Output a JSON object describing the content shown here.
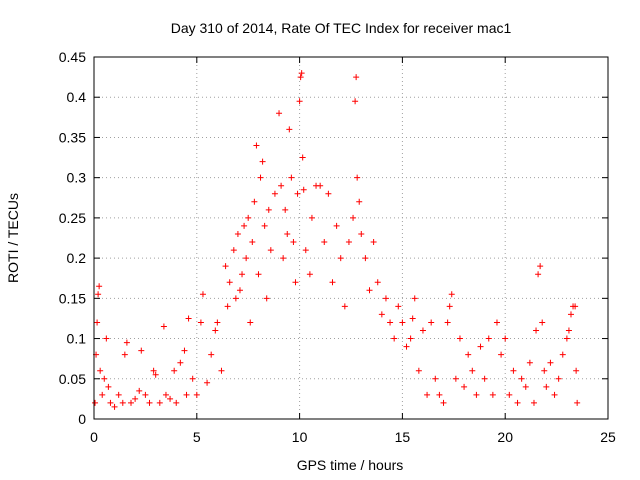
{
  "chart_data": {
    "type": "scatter",
    "title": "Day 310 of 2014, Rate Of TEC Index for receiver mac1",
    "xlabel": "GPS time / hours",
    "ylabel": "ROTI / TECUs",
    "xlim": [
      0,
      25
    ],
    "ylim": [
      0,
      0.45
    ],
    "xticks": [
      0,
      5,
      10,
      15,
      20,
      25
    ],
    "xtick_labels": [
      "0",
      "5",
      "10",
      "15",
      "20",
      "25"
    ],
    "yticks": [
      0,
      0.05,
      0.1,
      0.15,
      0.2,
      0.25,
      0.3,
      0.35,
      0.4,
      0.45
    ],
    "ytick_labels": [
      "0",
      "0.05",
      "0.1",
      "0.15",
      "0.2",
      "0.25",
      "0.3",
      "0.35",
      "0.4",
      "0.45"
    ],
    "grid": true,
    "marker": "plus",
    "color": "#ff0000",
    "series": [
      {
        "name": "ROTI",
        "points": [
          [
            0.05,
            0.02
          ],
          [
            0.1,
            0.08
          ],
          [
            0.15,
            0.12
          ],
          [
            0.2,
            0.155
          ],
          [
            0.25,
            0.165
          ],
          [
            0.3,
            0.06
          ],
          [
            0.4,
            0.03
          ],
          [
            0.5,
            0.05
          ],
          [
            0.6,
            0.1
          ],
          [
            0.7,
            0.04
          ],
          [
            0.8,
            0.02
          ],
          [
            1.0,
            0.015
          ],
          [
            1.2,
            0.03
          ],
          [
            1.4,
            0.02
          ],
          [
            1.5,
            0.08
          ],
          [
            1.6,
            0.095
          ],
          [
            1.8,
            0.02
          ],
          [
            2.0,
            0.025
          ],
          [
            2.2,
            0.035
          ],
          [
            2.3,
            0.085
          ],
          [
            2.5,
            0.03
          ],
          [
            2.7,
            0.02
          ],
          [
            2.9,
            0.06
          ],
          [
            3.0,
            0.055
          ],
          [
            3.2,
            0.02
          ],
          [
            3.4,
            0.115
          ],
          [
            3.5,
            0.03
          ],
          [
            3.7,
            0.025
          ],
          [
            3.9,
            0.06
          ],
          [
            4.0,
            0.02
          ],
          [
            4.2,
            0.07
          ],
          [
            4.4,
            0.085
          ],
          [
            4.5,
            0.03
          ],
          [
            4.6,
            0.125
          ],
          [
            4.8,
            0.05
          ],
          [
            5.0,
            0.03
          ],
          [
            5.2,
            0.12
          ],
          [
            5.3,
            0.155
          ],
          [
            5.5,
            0.045
          ],
          [
            5.7,
            0.08
          ],
          [
            5.9,
            0.11
          ],
          [
            6.0,
            0.12
          ],
          [
            6.2,
            0.06
          ],
          [
            6.4,
            0.19
          ],
          [
            6.5,
            0.14
          ],
          [
            6.6,
            0.17
          ],
          [
            6.8,
            0.21
          ],
          [
            6.9,
            0.15
          ],
          [
            7.0,
            0.23
          ],
          [
            7.1,
            0.16
          ],
          [
            7.2,
            0.18
          ],
          [
            7.3,
            0.24
          ],
          [
            7.4,
            0.2
          ],
          [
            7.5,
            0.25
          ],
          [
            7.6,
            0.12
          ],
          [
            7.7,
            0.22
          ],
          [
            7.8,
            0.27
          ],
          [
            7.9,
            0.34
          ],
          [
            8.0,
            0.18
          ],
          [
            8.1,
            0.3
          ],
          [
            8.2,
            0.32
          ],
          [
            8.3,
            0.24
          ],
          [
            8.4,
            0.15
          ],
          [
            8.5,
            0.26
          ],
          [
            8.6,
            0.21
          ],
          [
            8.8,
            0.28
          ],
          [
            9.0,
            0.38
          ],
          [
            9.1,
            0.29
          ],
          [
            9.2,
            0.2
          ],
          [
            9.3,
            0.26
          ],
          [
            9.4,
            0.23
          ],
          [
            9.5,
            0.36
          ],
          [
            9.6,
            0.3
          ],
          [
            9.7,
            0.22
          ],
          [
            9.8,
            0.17
          ],
          [
            9.9,
            0.28
          ],
          [
            10.0,
            0.395
          ],
          [
            10.05,
            0.425
          ],
          [
            10.1,
            0.43
          ],
          [
            10.15,
            0.325
          ],
          [
            10.2,
            0.285
          ],
          [
            10.3,
            0.21
          ],
          [
            10.5,
            0.18
          ],
          [
            10.6,
            0.25
          ],
          [
            10.8,
            0.29
          ],
          [
            11.0,
            0.29
          ],
          [
            11.2,
            0.22
          ],
          [
            11.4,
            0.28
          ],
          [
            11.6,
            0.17
          ],
          [
            11.8,
            0.24
          ],
          [
            12.0,
            0.2
          ],
          [
            12.2,
            0.14
          ],
          [
            12.4,
            0.22
          ],
          [
            12.6,
            0.25
          ],
          [
            12.7,
            0.395
          ],
          [
            12.75,
            0.425
          ],
          [
            12.8,
            0.3
          ],
          [
            12.9,
            0.27
          ],
          [
            13.0,
            0.23
          ],
          [
            13.2,
            0.2
          ],
          [
            13.4,
            0.16
          ],
          [
            13.6,
            0.22
          ],
          [
            13.8,
            0.17
          ],
          [
            14.0,
            0.13
          ],
          [
            14.2,
            0.15
          ],
          [
            14.4,
            0.12
          ],
          [
            14.6,
            0.1
          ],
          [
            14.8,
            0.14
          ],
          [
            15.0,
            0.12
          ],
          [
            15.2,
            0.09
          ],
          [
            15.4,
            0.1
          ],
          [
            15.5,
            0.125
          ],
          [
            15.6,
            0.15
          ],
          [
            15.8,
            0.06
          ],
          [
            16.0,
            0.11
          ],
          [
            16.2,
            0.03
          ],
          [
            16.4,
            0.12
          ],
          [
            16.6,
            0.05
          ],
          [
            16.8,
            0.03
          ],
          [
            17.0,
            0.02
          ],
          [
            17.2,
            0.12
          ],
          [
            17.3,
            0.14
          ],
          [
            17.4,
            0.155
          ],
          [
            17.6,
            0.05
          ],
          [
            17.8,
            0.1
          ],
          [
            18.0,
            0.04
          ],
          [
            18.2,
            0.08
          ],
          [
            18.4,
            0.06
          ],
          [
            18.6,
            0.03
          ],
          [
            18.8,
            0.09
          ],
          [
            19.0,
            0.05
          ],
          [
            19.2,
            0.1
          ],
          [
            19.4,
            0.03
          ],
          [
            19.6,
            0.12
          ],
          [
            19.8,
            0.08
          ],
          [
            20.0,
            0.1
          ],
          [
            20.2,
            0.03
          ],
          [
            20.4,
            0.06
          ],
          [
            20.6,
            0.02
          ],
          [
            20.8,
            0.05
          ],
          [
            21.0,
            0.04
          ],
          [
            21.2,
            0.07
          ],
          [
            21.4,
            0.02
          ],
          [
            21.5,
            0.11
          ],
          [
            21.6,
            0.18
          ],
          [
            21.7,
            0.19
          ],
          [
            21.8,
            0.12
          ],
          [
            21.9,
            0.06
          ],
          [
            22.0,
            0.04
          ],
          [
            22.2,
            0.07
          ],
          [
            22.4,
            0.03
          ],
          [
            22.6,
            0.05
          ],
          [
            22.8,
            0.08
          ],
          [
            23.0,
            0.1
          ],
          [
            23.1,
            0.11
          ],
          [
            23.2,
            0.13
          ],
          [
            23.3,
            0.14
          ],
          [
            23.4,
            0.14
          ],
          [
            23.45,
            0.06
          ],
          [
            23.5,
            0.02
          ]
        ]
      }
    ]
  }
}
